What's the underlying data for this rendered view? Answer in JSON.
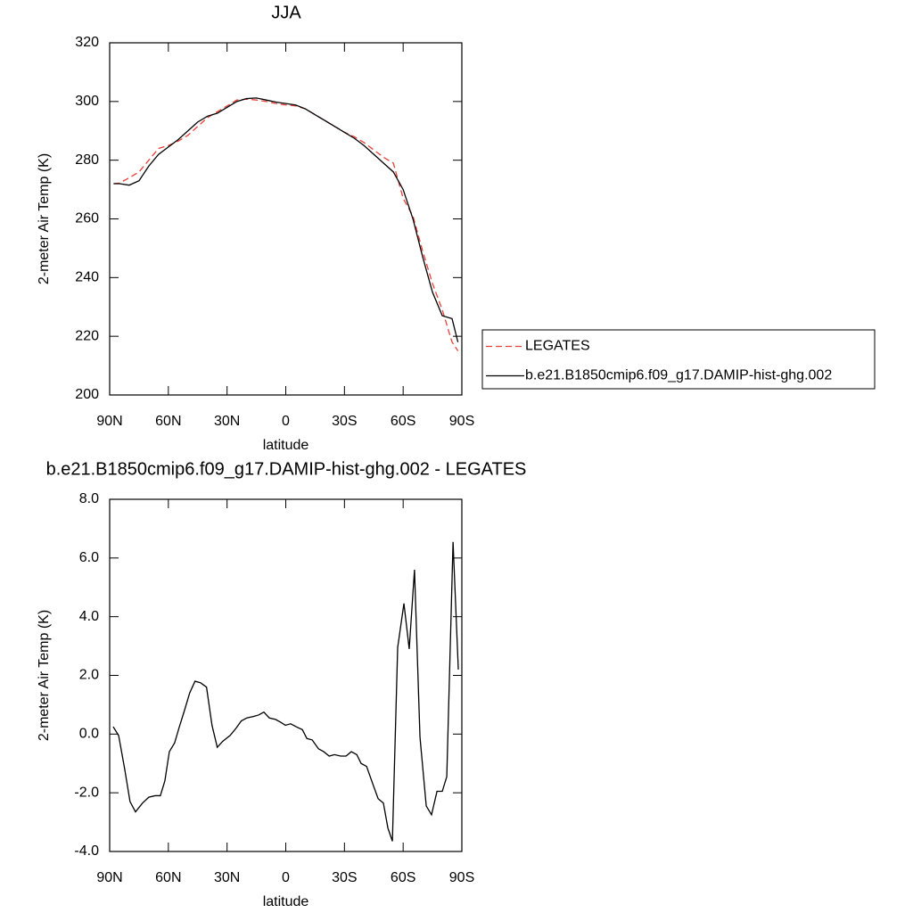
{
  "chart_data": [
    {
      "type": "line",
      "title": "JJA",
      "xlabel": "latitude",
      "ylabel": "2-meter Air Temp (K)",
      "x": [
        88,
        85,
        80,
        75,
        70,
        65,
        60,
        55,
        50,
        45,
        40,
        35,
        30,
        25,
        20,
        15,
        10,
        5,
        0,
        -5,
        -10,
        -15,
        -20,
        -25,
        -30,
        -35,
        -40,
        -45,
        -50,
        -55,
        -60,
        -65,
        -70,
        -75,
        -80,
        -85,
        -88
      ],
      "xlim": [
        90,
        -90
      ],
      "xticks": [
        {
          "value": 90,
          "label": "90N"
        },
        {
          "value": 60,
          "label": "60N"
        },
        {
          "value": 30,
          "label": "30N"
        },
        0,
        {
          "value": -30,
          "label": "30S"
        },
        {
          "value": -60,
          "label": "60S"
        },
        {
          "value": -90,
          "label": "90S"
        }
      ],
      "ylim": [
        200,
        320
      ],
      "yticks": [
        200,
        220,
        240,
        260,
        280,
        300,
        320
      ],
      "legend": "right",
      "series": [
        {
          "name": "LEGATES",
          "color": "#e8413a",
          "linestyle": "dashed",
          "values": [
            272,
            272.2,
            274,
            276,
            280,
            284,
            285,
            286.5,
            288.5,
            291.5,
            294.5,
            296.5,
            298.5,
            300.5,
            300.8,
            300.5,
            300,
            299.3,
            298.8,
            298.5,
            297.5,
            295.5,
            293.5,
            291.5,
            289.5,
            288,
            286,
            283.5,
            281,
            279,
            267,
            261,
            249,
            238,
            229,
            218,
            215
          ]
        },
        {
          "name": "b.e21.B1850cmip6.f09_g17.DAMIP-hist-ghg.002",
          "color": "#000000",
          "linestyle": "solid",
          "values": [
            272,
            272,
            271.5,
            273,
            278,
            282,
            284.5,
            287,
            290,
            293,
            295,
            296,
            298,
            300,
            301,
            301.2,
            300.5,
            299.8,
            299.3,
            298.8,
            297.5,
            295.5,
            293.5,
            291.5,
            289.5,
            287.5,
            285,
            282,
            279,
            276,
            270,
            260,
            247,
            235,
            227,
            226,
            218
          ]
        }
      ]
    },
    {
      "type": "line",
      "title": "b.e21.B1850cmip6.f09_g17.DAMIP-hist-ghg.002 - LEGATES",
      "xlabel": "latitude",
      "ylabel": "2-meter Air Temp (K)",
      "x": [
        88.2,
        85.4,
        82.3,
        79.6,
        76.8,
        73.2,
        70.0,
        66.8,
        64.1,
        61.8,
        59.5,
        56.8,
        54.6,
        51.8,
        49.1,
        46.4,
        43.6,
        40.5,
        37.7,
        35.0,
        32.3,
        28.5,
        25.4,
        22.7,
        19.9,
        16.6,
        13.9,
        11.2,
        8.4,
        5.2,
        2.5,
        0.2,
        -2.5,
        -5.3,
        -8.5,
        -10.8,
        -13.5,
        -16.7,
        -19.4,
        -22.2,
        -24.9,
        -28.1,
        -30.8,
        -33.5,
        -36.3,
        -38.5,
        -41.3,
        -44.5,
        -47.2,
        -49.9,
        -52.2,
        -54.5,
        -57.2,
        -60.4,
        -63.1,
        -65.8,
        -68.6,
        -71.8,
        -74.5,
        -77.3,
        -80.0,
        -82.3,
        -85.5,
        -88.2
      ],
      "values": [
        0.25,
        -0.05,
        -1.2,
        -2.3,
        -2.65,
        -2.35,
        -2.15,
        -2.1,
        -2.1,
        -1.6,
        -0.6,
        -0.3,
        0.2,
        0.8,
        1.4,
        1.8,
        1.75,
        1.6,
        0.3,
        -0.45,
        -0.25,
        -0.05,
        0.2,
        0.45,
        0.55,
        0.6,
        0.65,
        0.75,
        0.55,
        0.5,
        0.4,
        0.3,
        0.35,
        0.25,
        0.15,
        -0.15,
        -0.2,
        -0.5,
        -0.6,
        -0.75,
        -0.7,
        -0.75,
        -0.75,
        -0.6,
        -0.7,
        -1.0,
        -1.1,
        -1.7,
        -2.2,
        -2.35,
        -3.2,
        -3.65,
        2.95,
        4.45,
        2.9,
        5.6,
        -0.1,
        -2.45,
        -2.75,
        -1.95,
        -1.95,
        -1.45,
        6.55,
        2.2
      ],
      "color": "#000000",
      "xlim": [
        90,
        -90
      ],
      "xticks": [
        {
          "value": 90,
          "label": "90N"
        },
        {
          "value": 60,
          "label": "60N"
        },
        {
          "value": 30,
          "label": "30N"
        },
        0,
        {
          "value": -30,
          "label": "30S"
        },
        {
          "value": -60,
          "label": "60S"
        },
        {
          "value": -90,
          "label": "90S"
        }
      ],
      "ylim": [
        -4,
        8
      ],
      "yticks": [
        {
          "value": -4,
          "label": "-4.0"
        },
        {
          "value": -2,
          "label": "-2.0"
        },
        {
          "value": 0,
          "label": "0.0"
        },
        {
          "value": 2,
          "label": "2.0"
        },
        {
          "value": 4,
          "label": "4.0"
        },
        {
          "value": 6,
          "label": "6.0"
        },
        {
          "value": 8,
          "label": "8.0"
        }
      ]
    }
  ]
}
